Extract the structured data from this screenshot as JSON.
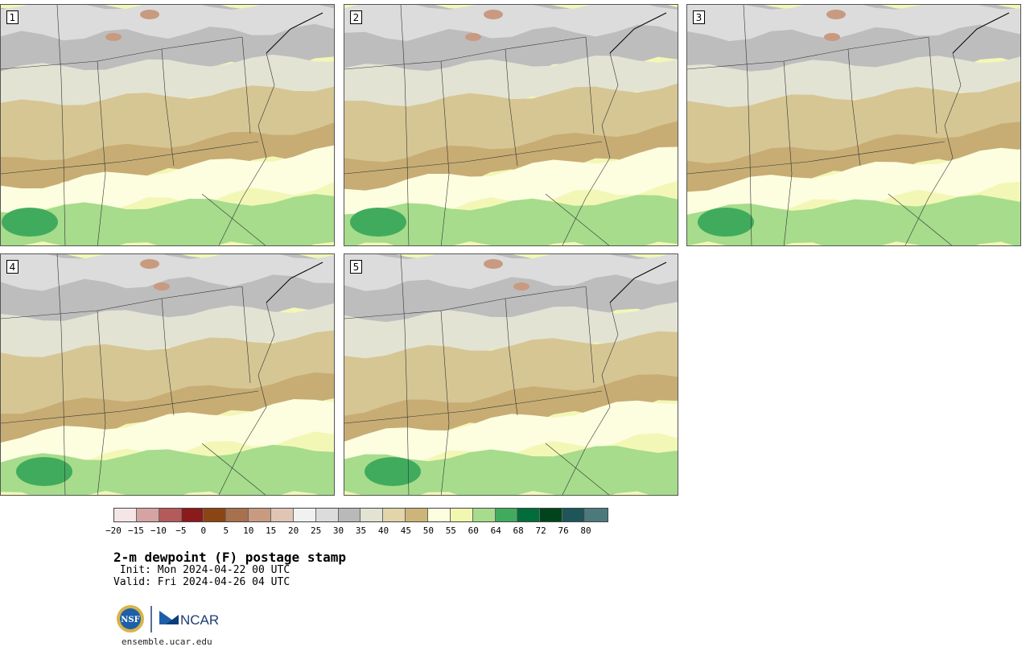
{
  "panels": [
    {
      "label": "1"
    },
    {
      "label": "2"
    },
    {
      "label": "3"
    },
    {
      "label": "4"
    },
    {
      "label": "5"
    }
  ],
  "colorbar": {
    "colors": [
      "#f4e6e6",
      "#d6a3a3",
      "#b45a5a",
      "#8b1a1a",
      "#8b4513",
      "#a6714c",
      "#c89a80",
      "#e0c4b4",
      "#f1f1f1",
      "#dcdcdc",
      "#b9b9b9",
      "#e3e3d4",
      "#e2d5a9",
      "#cdb57a",
      "#fdfde0",
      "#f2f7b0",
      "#a6dc8c",
      "#41ab5d",
      "#006d3b",
      "#00441b",
      "#1d5558",
      "#4c7a7c"
    ],
    "ticks": [
      "−20",
      "−15",
      "−10",
      "−5",
      "0",
      "5",
      "10",
      "15",
      "20",
      "25",
      "30",
      "35",
      "40",
      "45",
      "50",
      "55",
      "60",
      "64",
      "68",
      "72",
      "76",
      "80"
    ]
  },
  "title": "2-m dewpoint (F) postage stamp",
  "init": " Init: Mon 2024-04-22 00 UTC",
  "valid": "Valid: Fri 2024-04-26 04 UTC",
  "logos": {
    "nsf": "NSF",
    "ncar": "NCAR"
  },
  "site": "ensemble.ucar.edu"
}
